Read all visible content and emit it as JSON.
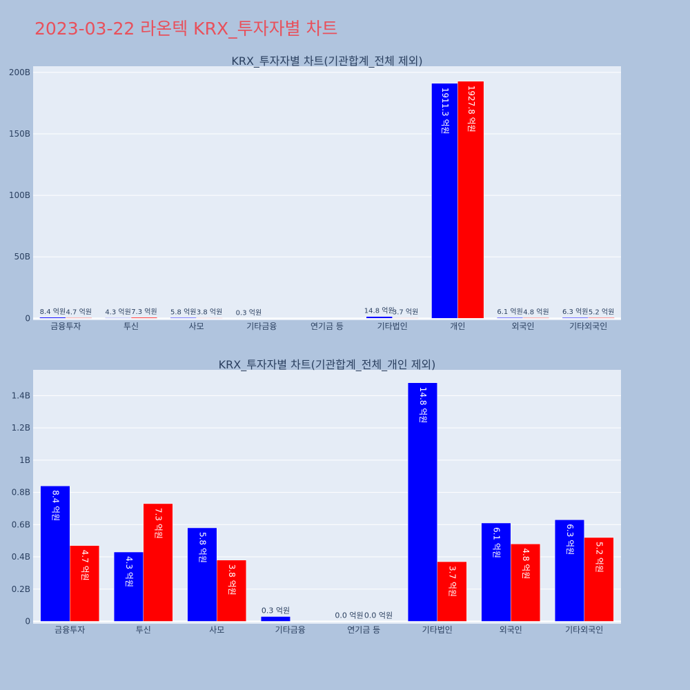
{
  "title": "2023-03-22 라온텍 KRX_투자자별 차트",
  "colors": {
    "sell": "#0000ff",
    "buy": "#ff0000",
    "plot_bg": "#e5ecf6",
    "page_bg": "#b0c4de",
    "title": "#e8505b"
  },
  "chart_data": [
    {
      "type": "bar",
      "title": "KRX_투자자별 차트(기관합계_전체 제외)",
      "categories": [
        "금융투자",
        "투신",
        "사모",
        "기타금융",
        "연기금 등",
        "기타법인",
        "개인",
        "외국인",
        "기타외국인"
      ],
      "series": [
        {
          "values": [
            0.84,
            0.43,
            0.58,
            0.03,
            0.0,
            1.48,
            191.13,
            0.61,
            0.63
          ],
          "labels": [
            "8.4 억원",
            "4.3 억원",
            "5.8 억원",
            "0.3 억원",
            "",
            "14.8 억원",
            "1911.3 억원",
            "6.1 억원",
            "6.3 억원"
          ]
        },
        {
          "values": [
            0.47,
            0.73,
            0.38,
            0.0,
            0.0,
            0.37,
            192.78,
            0.48,
            0.52
          ],
          "labels": [
            "4.7 억원",
            "7.3 억원",
            "3.8 억원",
            "",
            "",
            "3.7 억원",
            "1927.8 억원",
            "4.8 억원",
            "5.2 억원"
          ]
        }
      ],
      "yticks": [
        0,
        50,
        100,
        150,
        200
      ],
      "ytick_labels": [
        "0",
        "50B",
        "100B",
        "150B",
        "200B"
      ],
      "ylim": [
        -1.5,
        205
      ],
      "grid": true
    },
    {
      "type": "bar",
      "title": "KRX_투자자별 차트(기관합계_전체_개인 제외)",
      "categories": [
        "금융투자",
        "투신",
        "사모",
        "기타금융",
        "연기금 등",
        "기타법인",
        "외국인",
        "기타외국인"
      ],
      "series": [
        {
          "values": [
            0.84,
            0.43,
            0.58,
            0.03,
            0.0,
            1.48,
            0.61,
            0.63
          ],
          "labels": [
            "8.4 억원",
            "4.3 억원",
            "5.8 억원",
            "0.3 억원",
            "0.0 억원",
            "14.8 억원",
            "6.1 억원",
            "6.3 억원"
          ]
        },
        {
          "values": [
            0.47,
            0.73,
            0.38,
            0.0,
            0.0,
            0.37,
            0.48,
            0.52
          ],
          "labels": [
            "4.7 억원",
            "7.3 억원",
            "3.8 억원",
            "",
            "0.0 억원",
            "3.7 억원",
            "4.8 억원",
            "5.2 억원"
          ]
        }
      ],
      "yticks": [
        0,
        0.2,
        0.4,
        0.6,
        0.8,
        1.0,
        1.2,
        1.4
      ],
      "ytick_labels": [
        "0",
        "0.2B",
        "0.4B",
        "0.6B",
        "0.8B",
        "1B",
        "1.2B",
        "1.4B"
      ],
      "ylim": [
        -0.015,
        1.56
      ],
      "grid": true
    }
  ]
}
